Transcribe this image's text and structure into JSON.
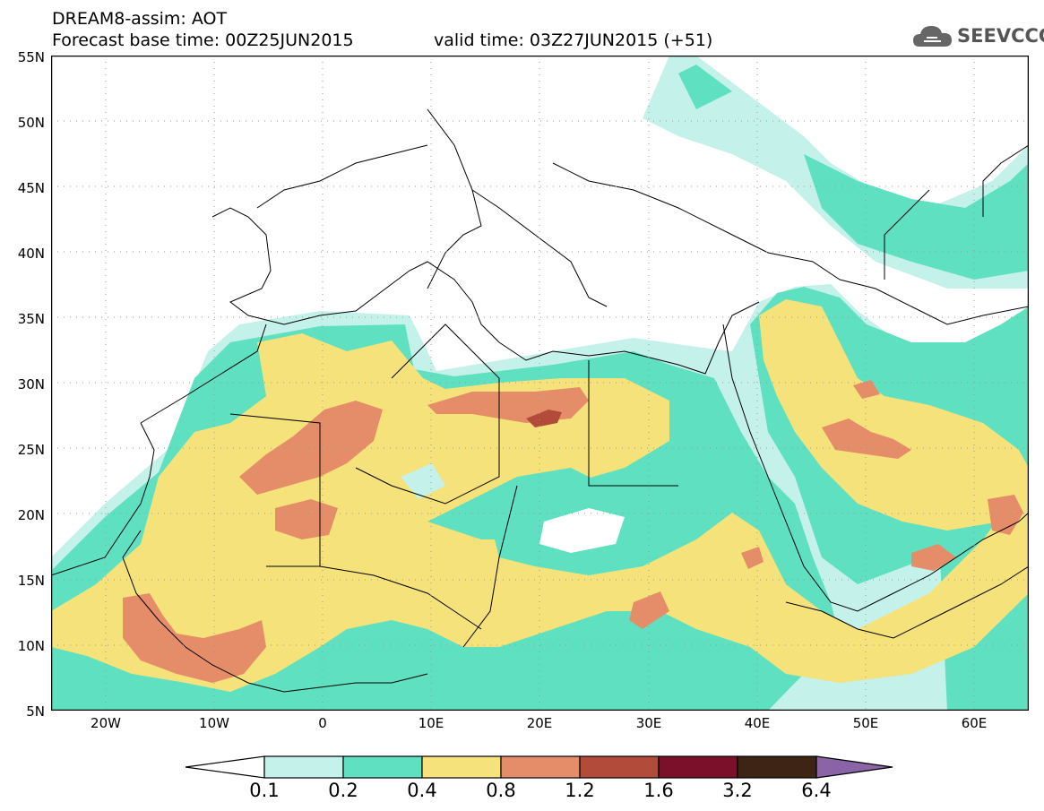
{
  "title": {
    "line1": "DREAM8-assim: AOT",
    "base_time": "Forecast base time: 00Z25JUN2015",
    "valid_time": "valid time: 03Z27JUN2015 (+51)"
  },
  "logo": {
    "text": "SEEVCCC",
    "icon": "cloud-icon"
  },
  "map": {
    "variable": "AOT",
    "lat_labels": [
      "55N",
      "50N",
      "45N",
      "40N",
      "35N",
      "30N",
      "25N",
      "20N",
      "15N",
      "10N",
      "5N"
    ],
    "lon_labels": [
      "20W",
      "10W",
      "0",
      "10E",
      "20E",
      "30E",
      "40E",
      "50E",
      "60E"
    ],
    "lat_range": [
      5,
      55
    ],
    "lon_range": [
      -25,
      65
    ],
    "grid": "dotted"
  },
  "colorbar": {
    "labels": [
      "0.1",
      "0.2",
      "0.4",
      "0.8",
      "1.2",
      "1.6",
      "3.2",
      "6.4"
    ],
    "colors": [
      "#ffffff",
      "#c4f1ea",
      "#5fe0c0",
      "#f5e27a",
      "#e58c68",
      "#b34b3a",
      "#7a1029",
      "#3d2415",
      "#8a64a6"
    ]
  }
}
